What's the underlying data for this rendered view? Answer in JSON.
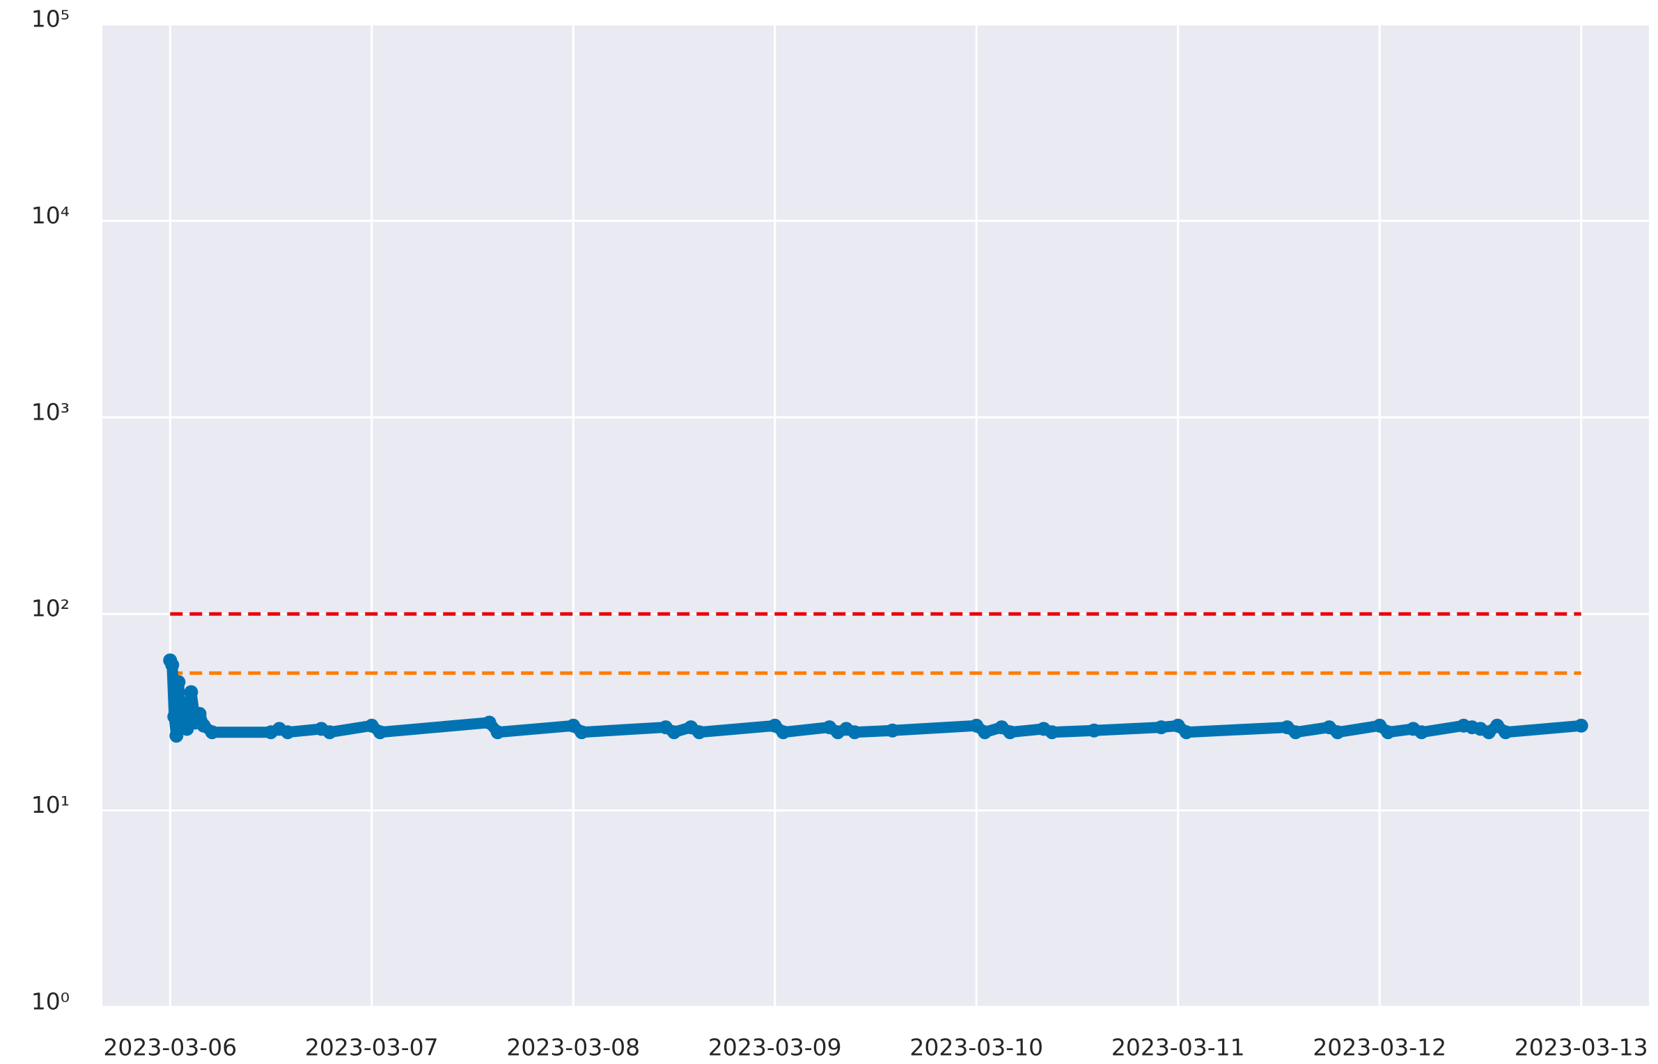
{
  "chart_data": {
    "type": "line",
    "log_y": true,
    "grid": true,
    "xlim": [
      "2023-03-05 15:56",
      "2023-03-13 08:04"
    ],
    "xticks": [
      "2023-03-06",
      "2023-03-07",
      "2023-03-08",
      "2023-03-09",
      "2023-03-10",
      "2023-03-11",
      "2023-03-12",
      "2023-03-13"
    ],
    "ylim": [
      1,
      100000
    ],
    "yticks": [
      {
        "value": 1,
        "label": "10⁰"
      },
      {
        "value": 10,
        "label": "10¹"
      },
      {
        "value": 100,
        "label": "10²"
      },
      {
        "value": 1000,
        "label": "10³"
      },
      {
        "value": 10000,
        "label": "10⁴"
      },
      {
        "value": 100000,
        "label": "10⁵"
      }
    ],
    "series": [
      {
        "color": "#0173b2",
        "markers": true,
        "x": [
          "2023-03-06 00:00",
          "2023-03-06 00:15",
          "2023-03-06 00:30",
          "2023-03-06 00:45",
          "2023-03-06 01:00",
          "2023-03-06 01:15",
          "2023-03-06 01:30",
          "2023-03-06 02:00",
          "2023-03-06 02:30",
          "2023-03-06 03:00",
          "2023-03-06 03:30",
          "2023-03-06 04:00",
          "2023-03-06 05:00",
          "2023-03-06 12:00",
          "2023-03-06 13:00",
          "2023-03-06 14:00",
          "2023-03-06 18:00",
          "2023-03-06 19:00",
          "2023-03-07 00:00",
          "2023-03-07 01:00",
          "2023-03-07 14:00",
          "2023-03-07 15:00",
          "2023-03-08 00:00",
          "2023-03-08 01:00",
          "2023-03-08 11:00",
          "2023-03-08 12:00",
          "2023-03-08 14:00",
          "2023-03-08 15:00",
          "2023-03-09 00:00",
          "2023-03-09 01:00",
          "2023-03-09 06:30",
          "2023-03-09 07:30",
          "2023-03-09 08:30",
          "2023-03-09 09:30",
          "2023-03-09 14:00",
          "2023-03-10 00:00",
          "2023-03-10 01:00",
          "2023-03-10 03:00",
          "2023-03-10 04:00",
          "2023-03-10 08:00",
          "2023-03-10 09:00",
          "2023-03-10 14:00",
          "2023-03-10 22:00",
          "2023-03-11 00:00",
          "2023-03-11 01:00",
          "2023-03-11 13:00",
          "2023-03-11 14:00",
          "2023-03-11 18:00",
          "2023-03-11 19:00",
          "2023-03-12 00:00",
          "2023-03-12 01:00",
          "2023-03-12 04:00",
          "2023-03-12 05:00",
          "2023-03-12 10:00",
          "2023-03-12 11:00",
          "2023-03-12 12:00",
          "2023-03-12 13:00",
          "2023-03-12 14:00",
          "2023-03-12 15:00",
          "2023-03-13 00:00"
        ],
        "values": [
          58,
          55,
          30,
          24,
          45,
          27,
          35,
          26,
          40,
          28,
          31,
          27,
          25,
          25,
          26,
          25,
          26,
          25,
          27,
          25,
          28,
          25,
          27,
          25,
          26.5,
          25,
          26.5,
          25,
          27,
          25,
          26.5,
          25,
          26,
          25,
          25.5,
          27,
          25,
          26.5,
          25,
          26,
          25,
          25.5,
          26.5,
          27,
          25,
          26.5,
          25,
          26.5,
          25,
          27,
          25,
          26,
          25,
          27,
          26.5,
          26,
          25,
          27,
          25,
          27
        ]
      }
    ],
    "hlines": [
      {
        "value": 100,
        "color": "#e8000b"
      },
      {
        "value": 50,
        "color": "#ff7c00"
      }
    ]
  }
}
